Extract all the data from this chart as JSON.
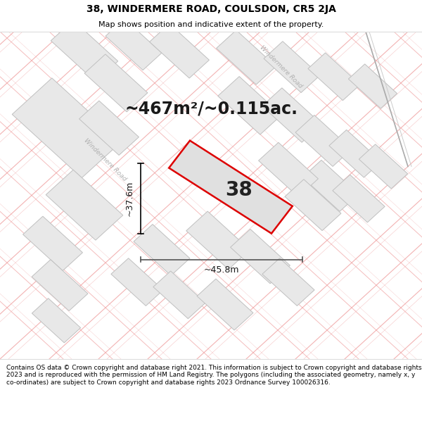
{
  "title_line1": "38, WINDERMERE ROAD, COULSDON, CR5 2JA",
  "title_line2": "Map shows position and indicative extent of the property.",
  "area_text": "~467m²/~0.115ac.",
  "property_number": "38",
  "dim_width": "~45.8m",
  "dim_height": "~37.6m",
  "footer_text": "Contains OS data © Crown copyright and database right 2021. This information is subject to Crown copyright and database rights 2023 and is reproduced with the permission of HM Land Registry. The polygons (including the associated geometry, namely x, y co-ordinates) are subject to Crown copyright and database rights 2023 Ordnance Survey 100026316.",
  "map_bg": "#f8f8f8",
  "block_fill": "#e8e8e8",
  "block_edge": "#c0c0c0",
  "road_pink": "#f0a0a0",
  "road_gray": "#c8c8c8",
  "prop_fill": "#e0e0e0",
  "prop_edge": "#dd0000",
  "label_color": "#b0b0b0",
  "path_color": "#aaaaaa",
  "title_fs": 10,
  "sub_fs": 8,
  "area_fs": 17,
  "num_fs": 20,
  "dim_fs": 9,
  "footer_fs": 6.5
}
